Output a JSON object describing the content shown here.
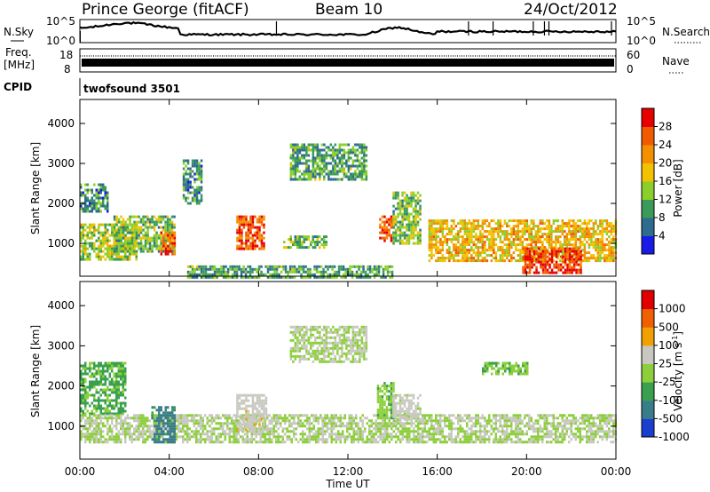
{
  "header": {
    "title": "Prince George (fitACF)",
    "beam": "Beam 10",
    "date": "24/Oct/2012"
  },
  "noise_panel": {
    "left_label": "N.Sky",
    "right_label": "N.Search",
    "left_ticks": [
      "10^5",
      "10^0"
    ],
    "right_ticks": [
      "10^5",
      "10^0"
    ]
  },
  "freq_panel": {
    "left_label_top": "Freq.",
    "left_label_bottom": "[MHz]",
    "right_label": "Nave",
    "left_ticks": [
      "18",
      "8"
    ],
    "right_ticks": [
      "60",
      "0"
    ]
  },
  "cpid": {
    "label": "CPID",
    "value": "twofsound 3501"
  },
  "power_panel": {
    "ylabel": "Slant Range [km]",
    "yticks": [
      "4000",
      "3000",
      "2000",
      "1000"
    ],
    "colorbar_label": "Power [dB]",
    "colorbar_ticks": [
      "28",
      "24",
      "20",
      "16",
      "12",
      "8",
      "4"
    ],
    "colors": [
      "#1a1ae6",
      "#2d6b8f",
      "#3a9a5a",
      "#8ccf2a",
      "#f2c200",
      "#f29000",
      "#f25a00",
      "#e60000"
    ]
  },
  "velocity_panel": {
    "ylabel": "Slant Range [km]",
    "yticks": [
      "4000",
      "3000",
      "2000",
      "1000"
    ],
    "colorbar_label": "Velocity [m s",
    "colorbar_exp": "-1",
    "colorbar_label_end": "]",
    "colorbar_ticks": [
      "1000",
      "500",
      "100",
      "25",
      "-25",
      "-100",
      "-500",
      "-1000"
    ],
    "colors": [
      "#1a3fd0",
      "#3a7d8a",
      "#3aa050",
      "#8ccf3a",
      "#c8c8c0",
      "#f0a000",
      "#f06000",
      "#e00000"
    ]
  },
  "x_axis": {
    "label": "Time UT",
    "ticks": [
      "00:00",
      "04:00",
      "08:00",
      "12:00",
      "16:00",
      "20:00",
      "00:00"
    ]
  },
  "chart_data": [
    {
      "type": "heatmap",
      "name": "power",
      "xlabel": "Time UT",
      "ylabel": "Slant Range [km]",
      "xlim": [
        0,
        24
      ],
      "ylim": [
        180,
        4600
      ],
      "colorbar": "Power [dB]",
      "clim": [
        0,
        30
      ],
      "regions": [
        {
          "t0": 0.0,
          "t1": 2.5,
          "r0": 600,
          "r1": 1500,
          "value": 14
        },
        {
          "t0": 0.0,
          "t1": 1.2,
          "r0": 1800,
          "r1": 2500,
          "value": 8
        },
        {
          "t0": 1.5,
          "t1": 4.2,
          "r0": 800,
          "r1": 1700,
          "value": 12
        },
        {
          "t0": 3.6,
          "t1": 4.2,
          "r0": 750,
          "r1": 1300,
          "value": 24
        },
        {
          "t0": 4.6,
          "t1": 5.4,
          "r0": 2000,
          "r1": 3100,
          "value": 8
        },
        {
          "t0": 7.0,
          "t1": 8.2,
          "r0": 900,
          "r1": 1700,
          "value": 24
        },
        {
          "t0": 9.0,
          "t1": 11.0,
          "r0": 900,
          "r1": 1200,
          "value": 12
        },
        {
          "t0": 9.4,
          "t1": 12.8,
          "r0": 2600,
          "r1": 3500,
          "value": 10
        },
        {
          "t0": 13.4,
          "t1": 14.0,
          "r0": 1100,
          "r1": 1700,
          "value": 24
        },
        {
          "t0": 14.0,
          "t1": 15.2,
          "r0": 1000,
          "r1": 2300,
          "value": 12
        },
        {
          "t0": 15.6,
          "t1": 24.0,
          "r0": 600,
          "r1": 1600,
          "value": 18
        },
        {
          "t0": 19.8,
          "t1": 22.4,
          "r0": 300,
          "r1": 900,
          "value": 27
        },
        {
          "t0": 4.8,
          "t1": 14.0,
          "r0": 180,
          "r1": 450,
          "value": 10
        }
      ]
    },
    {
      "type": "heatmap",
      "name": "velocity",
      "xlabel": "Time UT",
      "ylabel": "Slant Range [km]",
      "xlim": [
        0,
        24
      ],
      "ylim": [
        180,
        4600
      ],
      "colorbar": "Velocity [m s-1]",
      "clim": [
        -1000,
        1000
      ],
      "regions": [
        {
          "t0": 0.0,
          "t1": 2.0,
          "r0": 1300,
          "r1": 2600,
          "value": -300
        },
        {
          "t0": 0.0,
          "t1": 24.0,
          "r0": 600,
          "r1": 1300,
          "value": 0
        },
        {
          "t0": 3.2,
          "t1": 4.2,
          "r0": 600,
          "r1": 1500,
          "value": -600
        },
        {
          "t0": 7.0,
          "t1": 8.3,
          "r0": 900,
          "r1": 1800,
          "value": 150
        },
        {
          "t0": 9.4,
          "t1": 12.8,
          "r0": 2600,
          "r1": 3500,
          "value": 0
        },
        {
          "t0": 13.3,
          "t1": 14.0,
          "r0": 1200,
          "r1": 2100,
          "value": -200
        },
        {
          "t0": 14.0,
          "t1": 15.2,
          "r0": 1200,
          "r1": 1800,
          "value": 80
        },
        {
          "t0": 18.0,
          "t1": 20.0,
          "r0": 2300,
          "r1": 2600,
          "value": -200
        }
      ]
    }
  ]
}
